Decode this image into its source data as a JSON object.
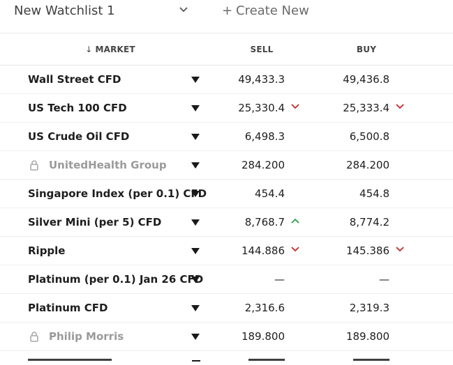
{
  "toolbar": {
    "watchlist_name": "New Watchlist 1",
    "create_plus": "+",
    "create_label": "Create New"
  },
  "columns": {
    "sort_arrow": "↓",
    "market": "MARKET",
    "sell": "SELL",
    "buy": "BUY"
  },
  "colors": {
    "down": "#c62828",
    "up": "#2e9e48"
  },
  "rows": [
    {
      "name": "Wall Street CFD",
      "sell": "49,433.3",
      "buy": "49,436.8",
      "locked": false,
      "sell_trend": "",
      "buy_trend": ""
    },
    {
      "name": "US Tech 100 CFD",
      "sell": "25,330.4",
      "buy": "25,333.4",
      "locked": false,
      "sell_trend": "down",
      "buy_trend": "down"
    },
    {
      "name": "US Crude Oil CFD",
      "sell": "6,498.3",
      "buy": "6,500.8",
      "locked": false,
      "sell_trend": "",
      "buy_trend": ""
    },
    {
      "name": "UnitedHealth Group",
      "sell": "284.200",
      "buy": "284.200",
      "locked": true,
      "sell_trend": "",
      "buy_trend": ""
    },
    {
      "name": "Singapore Index (per 0.1) CFD",
      "sell": "454.4",
      "buy": "454.8",
      "locked": false,
      "sell_trend": "",
      "buy_trend": ""
    },
    {
      "name": "Silver Mini (per 5) CFD",
      "sell": "8,768.7",
      "buy": "8,774.2",
      "locked": false,
      "sell_trend": "up",
      "buy_trend": ""
    },
    {
      "name": "Ripple",
      "sell": "144.886",
      "buy": "145.386",
      "locked": false,
      "sell_trend": "down",
      "buy_trend": "down"
    },
    {
      "name": "Platinum (per 0.1) Jan 26 CFD",
      "sell": "—",
      "buy": "—",
      "locked": false,
      "sell_trend": "",
      "buy_trend": ""
    },
    {
      "name": "Platinum CFD",
      "sell": "2,316.6",
      "buy": "2,319.3",
      "locked": false,
      "sell_trend": "",
      "buy_trend": ""
    },
    {
      "name": "Philip Morris",
      "sell": "189.800",
      "buy": "189.800",
      "locked": true,
      "sell_trend": "",
      "buy_trend": ""
    }
  ]
}
